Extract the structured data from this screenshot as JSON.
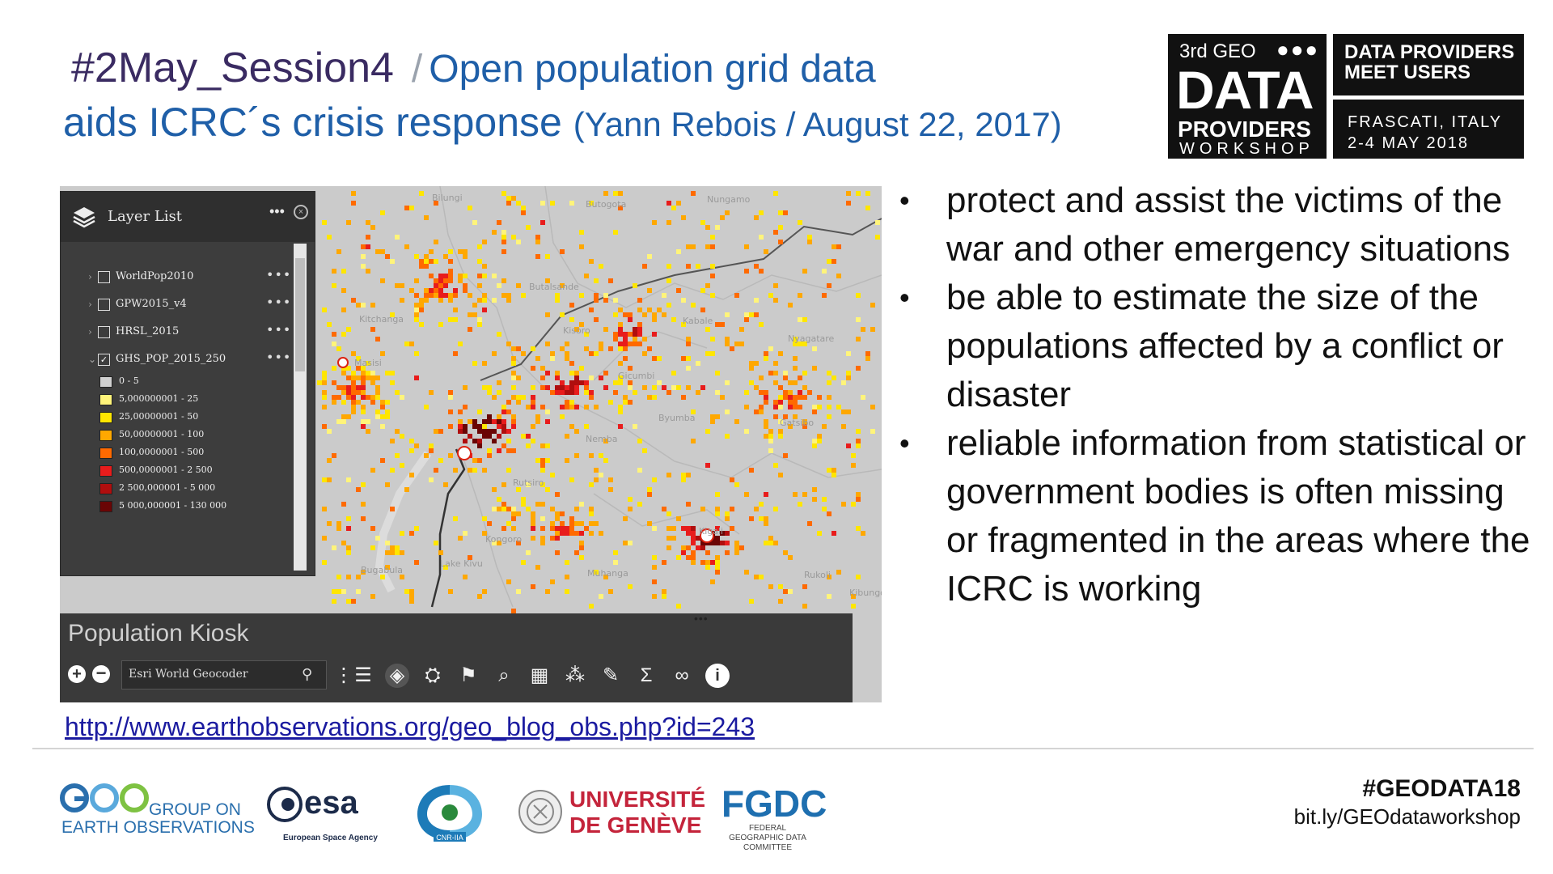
{
  "title": {
    "session": "#2May_Session4",
    "separator": "/",
    "headline_part1": "Open population grid data",
    "headline_part2": "aids ICRC´s crisis response",
    "byline": "(Yann Rebois / August 22, 2017)"
  },
  "workshop_logo": {
    "edition": "3rd GEO",
    "word1": "DATA",
    "word2": "PROVIDERS",
    "word3": "WORKSHOP",
    "tagline": "DATA PROVIDERS MEET USERS",
    "location": "FRASCATI, ITALY",
    "dates": "2-4 MAY 2018"
  },
  "map": {
    "layer_list": {
      "title": "Layer List",
      "layers": [
        {
          "name": "WorldPop2010",
          "checked": false
        },
        {
          "name": "GPW2015_v4",
          "checked": false
        },
        {
          "name": "HRSL_2015",
          "checked": false
        },
        {
          "name": "GHS_POP_2015_250",
          "checked": true
        }
      ],
      "legend": [
        {
          "label": "0 - 5",
          "color": "#d0d0d0"
        },
        {
          "label": "5,000000001 - 25",
          "color": "#fff47a"
        },
        {
          "label": "25,00000001 - 50",
          "color": "#ffe600"
        },
        {
          "label": "50,00000001 - 100",
          "color": "#ffa800"
        },
        {
          "label": "100,0000001 - 500",
          "color": "#ff6a00"
        },
        {
          "label": "500,0000001 - 2 500",
          "color": "#e81c1c"
        },
        {
          "label": "2 500,000001 - 5 000",
          "color": "#b00e0e"
        },
        {
          "label": "5 000,000001 - 130 000",
          "color": "#6a0505"
        }
      ]
    },
    "kiosk": {
      "title": "Population Kiosk",
      "search_placeholder": "Esri World Geocoder"
    },
    "places": [
      "Bilungi",
      "Butogota",
      "Nungamo",
      "Butalsande",
      "Kitchanga",
      "Kisoro",
      "Kabale",
      "Nyagatare",
      "Masisi",
      "Gicumbi",
      "Byumba",
      "Gatsibo",
      "Nemba",
      "Rutsiro",
      "Kigali",
      "Kongoro",
      "Lake Kivu",
      "Bugabula",
      "Muhanga",
      "Rukoli",
      "Kibungo"
    ]
  },
  "link": "http://www.earthobservations.org/geo_blog_obs.php?id=243",
  "bullets": [
    "protect and assist the victims of the war and other emergency situations",
    "be able to  estimate the size of the populations affected by a conflict or disaster",
    "reliable information from statistical or government bodies is often missing or fragmented in the areas where the ICRC is working"
  ],
  "footer": {
    "geo": {
      "line1": "GROUP ON",
      "line2": "EARTH OBSERVATIONS"
    },
    "esa": {
      "name": "esa",
      "sub": "European Space Agency"
    },
    "cnr": {
      "label": "CNR-IIA"
    },
    "unige": {
      "line1": "UNIVERSITÉ",
      "line2": "DE GENÈVE"
    },
    "fgdc": {
      "name": "FGDC",
      "sub": "FEDERAL GEOGRAPHIC DATA COMMITTEE"
    },
    "hashtag": "#GEODATA18",
    "url": "bit.ly/GEOdataworkshop"
  }
}
